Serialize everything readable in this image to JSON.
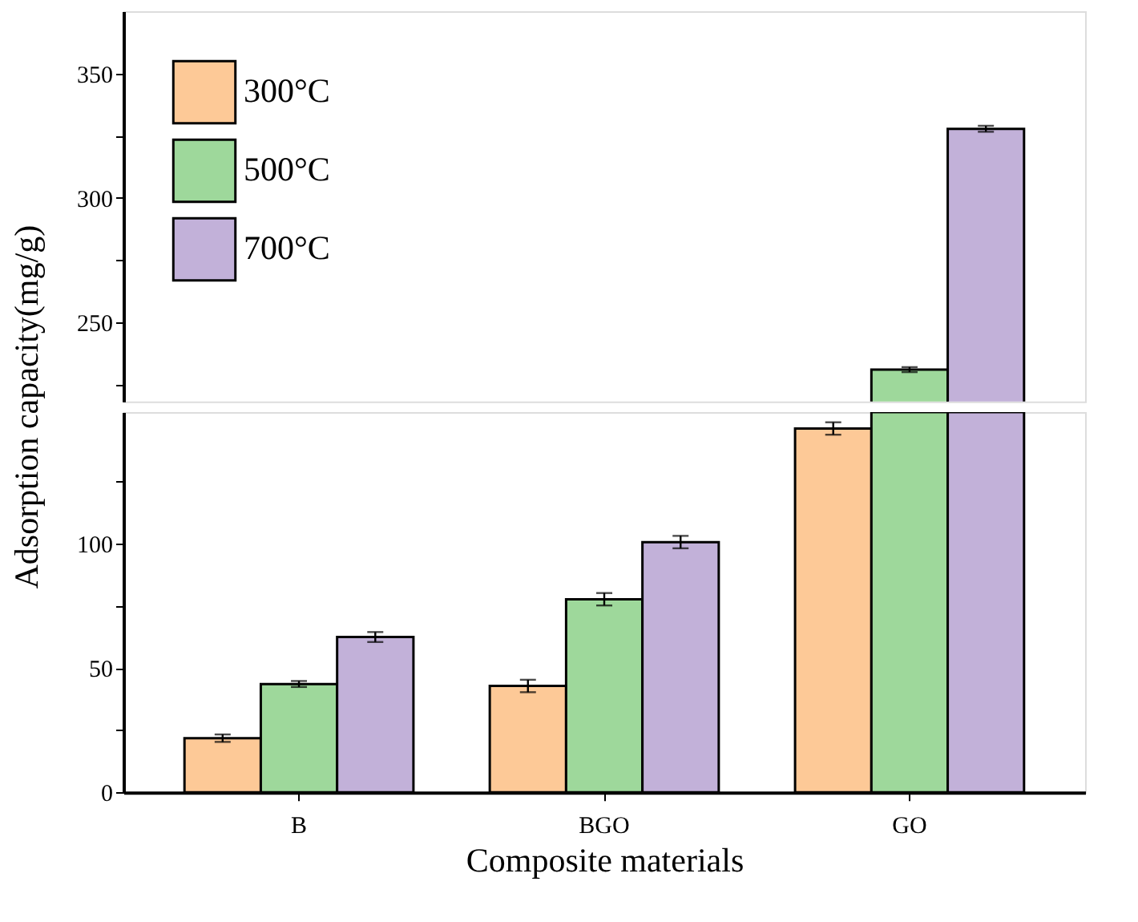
{
  "chart_data": [
    {
      "type": "bar",
      "ylabel": "Adsorption capacity(mg/g)",
      "categories": [
        null,
        null,
        null
      ],
      "series": [
        {
          "name": "300°C",
          "color": "#fdc997",
          "values": [
            null,
            null,
            null
          ]
        },
        {
          "name": "500°C",
          "color": "#9ed89b",
          "values": [
            null,
            null,
            230.8
          ],
          "errors": [
            null,
            null,
            1
          ]
        },
        {
          "name": "700°C",
          "color": "#c2b1d9",
          "values": [
            null,
            null,
            327.7
          ],
          "errors": [
            null,
            null,
            1.2
          ]
        }
      ],
      "ylim": [
        218,
        375
      ],
      "yticks": [
        {
          "value": 225,
          "label": null
        },
        250,
        {
          "value": 275,
          "label": null
        },
        300,
        {
          "value": 325,
          "label": null
        },
        350
      ],
      "tick_labels": "y",
      "legend": "top left",
      "grid": false
    },
    {
      "type": "bar",
      "xlabel": "Composite materials",
      "categories": [
        "B",
        "BGO",
        "GO"
      ],
      "series": [
        {
          "color": "#fdc997",
          "values": [
            21.8,
            42.8,
            146.4
          ],
          "errors": [
            1.5,
            2.5,
            2.5
          ]
        },
        {
          "color": "#9ed89b",
          "values": [
            43.6,
            77.7,
            153
          ],
          "errors": [
            1.2,
            2.5,
            null
          ]
        },
        {
          "color": "#c2b1d9",
          "values": [
            62.5,
            100.7,
            153
          ],
          "errors": [
            2,
            2.5,
            null
          ]
        }
      ],
      "ylim": [
        0,
        153
      ],
      "yticks": [
        0,
        {
          "value": 25,
          "label": null
        },
        50,
        {
          "value": 75,
          "label": null
        },
        100,
        {
          "value": 125,
          "label": null
        }
      ],
      "grid": false
    }
  ]
}
